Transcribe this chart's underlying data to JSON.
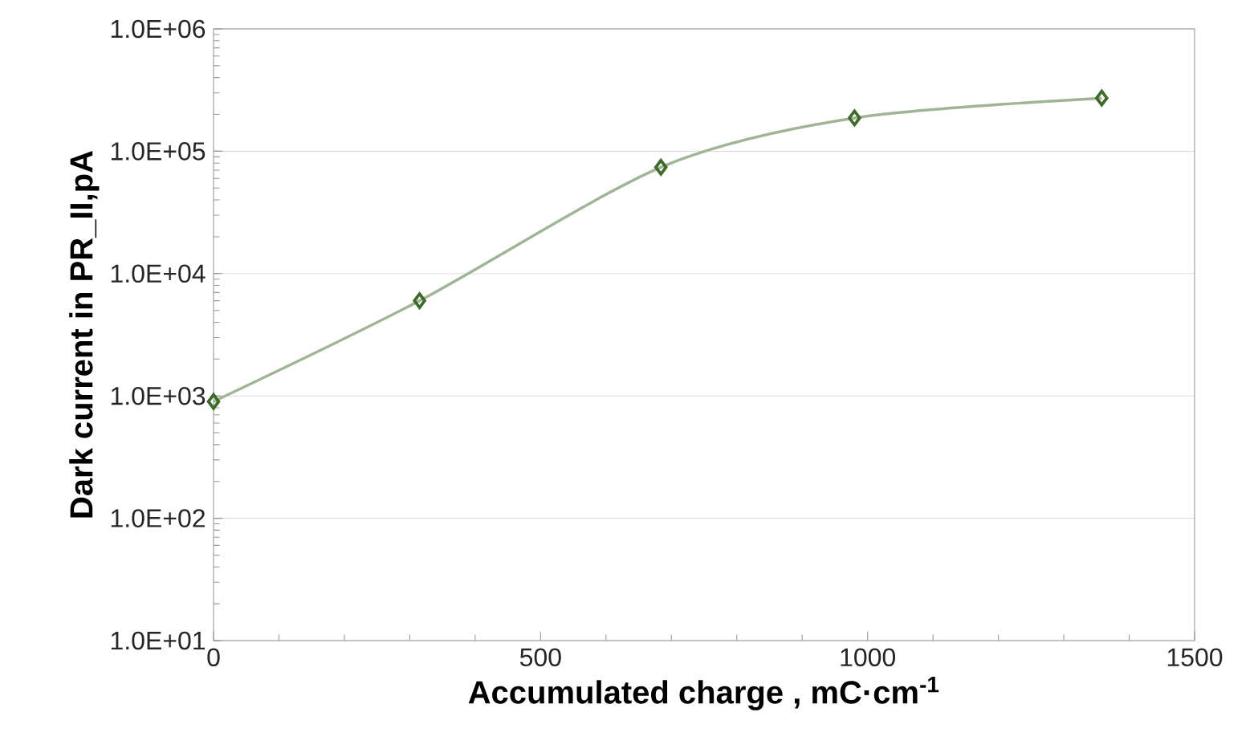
{
  "chart_data": {
    "type": "line",
    "xlabel": "Accumulated charge , mC·cm$^{-1}$",
    "ylabel": "Dark current in PR_II,pA",
    "x": [
      0,
      315,
      684,
      980,
      1358
    ],
    "series": [
      {
        "color": "#3f6b2a",
        "values": [
          900,
          6000,
          74000,
          187000,
          272000
        ]
      }
    ],
    "xlim": [
      0,
      1500
    ],
    "xticks": [
      0,
      500,
      1000,
      1500
    ],
    "ylim": [
      10,
      1000000
    ],
    "yticks": [
      {
        "value": 10,
        "label": "1.0E+01"
      },
      {
        "value": 100,
        "label": "1.0E+02"
      },
      {
        "value": 1000,
        "label": "1.0E+03"
      },
      {
        "value": 10000,
        "label": "1.0E+04"
      },
      {
        "value": 100000,
        "label": "1.0E+05"
      },
      {
        "value": 1000000,
        "label": "1.0E+06"
      }
    ],
    "log": "y",
    "grid": "y",
    "marker": "diamond",
    "line_style": "solid"
  }
}
